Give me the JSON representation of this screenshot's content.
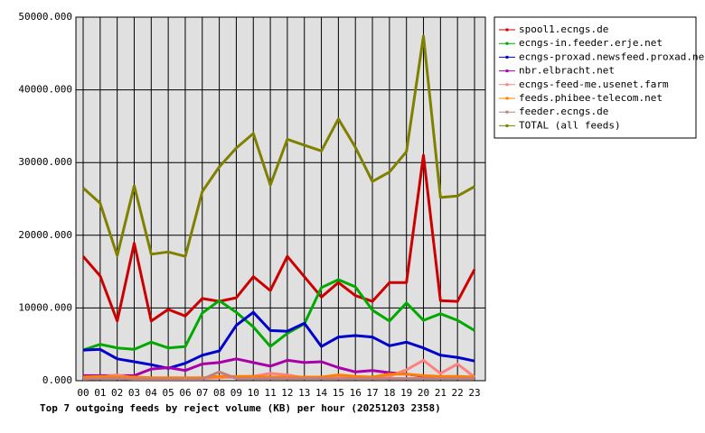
{
  "chart_data": {
    "type": "line",
    "title": "Top 7 outgoing feeds by reject volume (KB) per hour (20251203 2358)",
    "categories": [
      "00",
      "01",
      "02",
      "03",
      "04",
      "05",
      "06",
      "07",
      "08",
      "09",
      "10",
      "11",
      "12",
      "13",
      "14",
      "15",
      "16",
      "17",
      "18",
      "19",
      "20",
      "21",
      "22",
      "23"
    ],
    "ylim": [
      0,
      50000
    ],
    "yticks": [
      {
        "value": 0,
        "label": "0.000"
      },
      {
        "value": 10000,
        "label": "10000.000"
      },
      {
        "value": 20000,
        "label": "20000.000"
      },
      {
        "value": 30000,
        "label": "30000.000"
      },
      {
        "value": 40000,
        "label": "40000.000"
      },
      {
        "value": 50000,
        "label": "50000.000"
      }
    ],
    "grid": true,
    "series": [
      {
        "name": "spool1.ecngs.de",
        "color": "#cc0000",
        "values": [
          17100,
          14400,
          8200,
          18900,
          8200,
          9800,
          8900,
          11300,
          10900,
          11400,
          14300,
          12400,
          17100,
          14300,
          11500,
          13500,
          11700,
          10900,
          13500,
          13500,
          31000,
          11000,
          10900,
          15300
        ]
      },
      {
        "name": "ecngs-in.feeder.erje.net",
        "color": "#00aa00",
        "values": [
          4200,
          5000,
          4500,
          4300,
          5300,
          4500,
          4700,
          9300,
          11000,
          9400,
          7400,
          4700,
          6500,
          7800,
          12800,
          13900,
          12900,
          9700,
          8200,
          10700,
          8300,
          9200,
          8300,
          6900
        ]
      },
      {
        "name": "ecngs-proxad.newsfeed.proxad.net",
        "color": "#0000cc",
        "values": [
          4200,
          4300,
          3000,
          2600,
          2200,
          1700,
          2400,
          3500,
          4100,
          7600,
          9400,
          6900,
          6800,
          7900,
          4700,
          6000,
          6200,
          6000,
          4800,
          5300,
          4500,
          3500,
          3200,
          2700
        ]
      },
      {
        "name": "nbr.elbracht.net",
        "color": "#aa00aa",
        "values": [
          700,
          700,
          700,
          700,
          1600,
          1800,
          1400,
          2300,
          2500,
          3000,
          2500,
          2000,
          2800,
          2500,
          2600,
          1800,
          1200,
          1400,
          1100,
          900,
          600,
          500,
          500,
          500
        ]
      },
      {
        "name": "ecngs-feed-me.usenet.farm",
        "color": "#ff8080",
        "values": [
          300,
          500,
          800,
          400,
          300,
          300,
          300,
          300,
          400,
          500,
          600,
          1000,
          800,
          400,
          400,
          500,
          300,
          400,
          600,
          1500,
          2800,
          1000,
          2300,
          500
        ]
      },
      {
        "name": "feeds.phibee-telecom.net",
        "color": "#ff8000",
        "values": [
          500,
          600,
          500,
          500,
          400,
          400,
          400,
          400,
          600,
          600,
          600,
          500,
          500,
          500,
          500,
          800,
          600,
          500,
          900,
          900,
          700,
          600,
          600,
          500
        ]
      },
      {
        "name": "feeder.ecngs.de",
        "color": "#c08080",
        "values": [
          200,
          300,
          300,
          200,
          200,
          200,
          200,
          200,
          1200,
          300,
          300,
          300,
          300,
          300,
          300,
          300,
          300,
          300,
          300,
          300,
          300,
          300,
          300,
          300
        ]
      },
      {
        "name": "TOTAL (all feeds)",
        "color": "#808000",
        "values": [
          26500,
          24400,
          17200,
          26800,
          17400,
          17700,
          17100,
          26000,
          29400,
          32000,
          34000,
          26900,
          33200,
          32400,
          31600,
          36000,
          32100,
          27400,
          28700,
          31500,
          47400,
          25200,
          25400,
          26700
        ]
      }
    ]
  }
}
